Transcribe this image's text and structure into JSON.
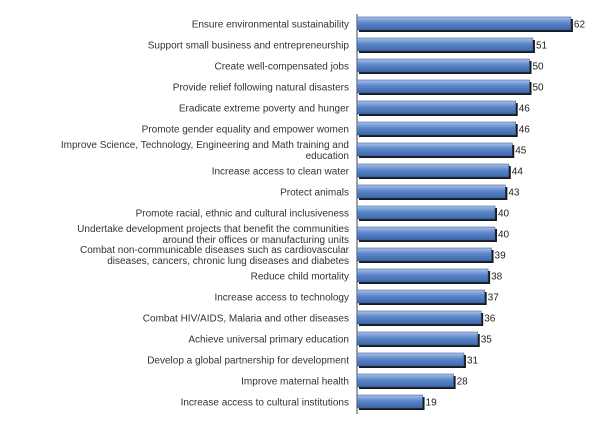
{
  "chart_data": {
    "type": "bar",
    "orientation": "horizontal",
    "title": "",
    "xlabel": "",
    "ylabel": "",
    "categories": [
      "Ensure environmental sustainability",
      "Support small business and entrepreneurship",
      "Create well-compensated jobs",
      "Provide relief following natural disasters",
      "Eradicate extreme poverty and hunger",
      "Promote gender equality and empower women",
      "Improve Science, Technology, Engineering and Math training and education",
      "Increase access to clean water",
      "Protect animals",
      "Promote racial, ethnic and cultural inclusiveness",
      "Undertake development projects that benefit the communities around their offices or manufacturing units",
      "Combat non-communicable diseases such as cardiovascular diseases, cancers, chronic lung diseases and diabetes",
      "Reduce child mortality",
      "Increase access to technology",
      "Combat HIV/AIDS, Malaria and other diseases",
      "Achieve universal primary education",
      "Develop a global partnership for development",
      "Improve maternal health",
      "Increase access to cultural institutions"
    ],
    "values": [
      62,
      51,
      50,
      50,
      46,
      46,
      45,
      44,
      43,
      40,
      40,
      39,
      38,
      37,
      36,
      35,
      31,
      28,
      19
    ],
    "xlim": [
      0,
      70
    ],
    "grid": false,
    "legend": "none",
    "colors": {
      "bar": "#5b86c9",
      "bar_highlight": "#a9c3ea",
      "bar_shadow": "#1a1a1a",
      "axis": "#444444"
    }
  }
}
